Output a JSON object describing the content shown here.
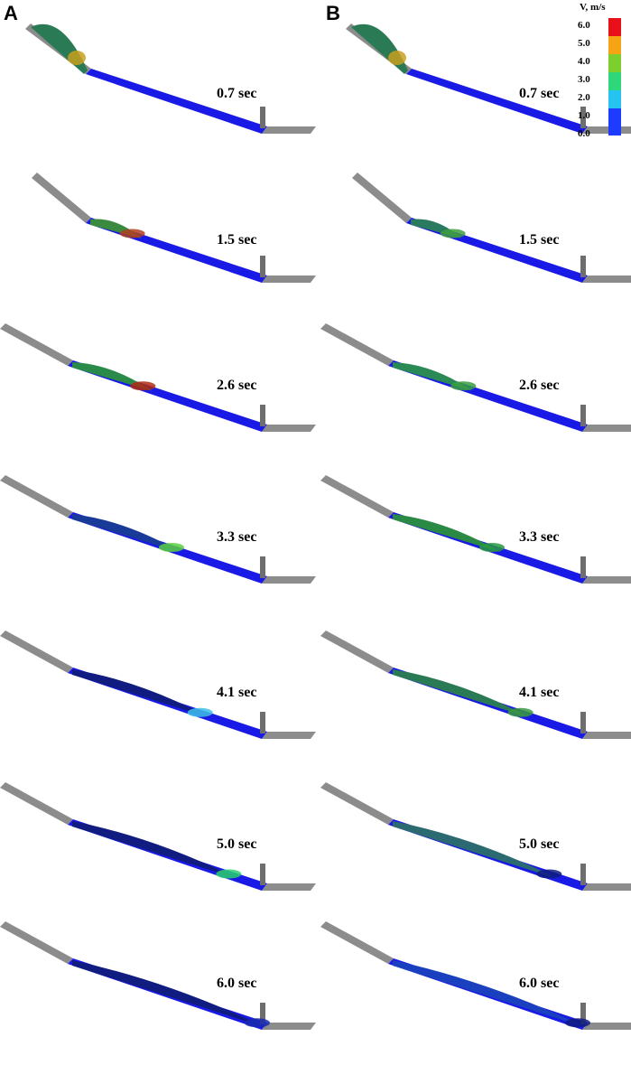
{
  "panels": [
    {
      "letter": "A",
      "times": [
        "0.7 sec",
        "1.5 sec",
        "2.6 sec",
        "3.3 sec",
        "4.1 sec",
        "5.0 sec",
        "6.0 sec"
      ]
    },
    {
      "letter": "B",
      "times": [
        "0.7 sec",
        "1.5 sec",
        "2.6 sec",
        "3.3 sec",
        "4.1 sec",
        "5.0 sec",
        "6.0 sec"
      ]
    }
  ],
  "legend": {
    "title": "V, m/s",
    "ticks": [
      "6.0",
      "5.0",
      "4.0",
      "3.0",
      "2.0",
      "1.0",
      "0.0"
    ],
    "colors": [
      "#e8111a",
      "#f5a514",
      "#7ccf2c",
      "#2ed87a",
      "#27c3f0",
      "#1e5cff",
      "#1010d8"
    ]
  },
  "colors": {
    "ramp_gray": "#8c8c8c",
    "particle_blue": "#1a1ae6",
    "particle_dark": "#0e1a6e",
    "particle_green": "#3aa030",
    "particle_red": "#c02010",
    "particle_cyan": "#3ac8e8"
  }
}
